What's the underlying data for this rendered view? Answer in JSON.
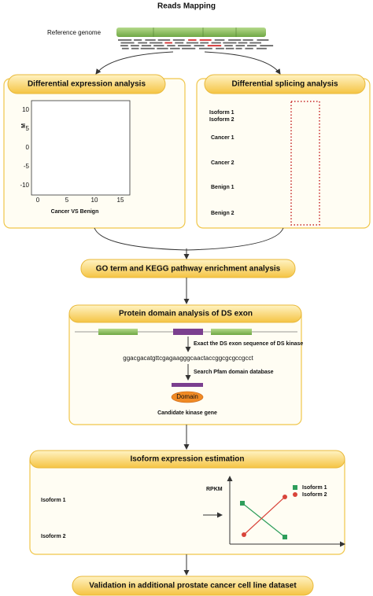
{
  "header": {
    "title": "Reads Mapping",
    "reference_label": "Reference genome"
  },
  "de_panel": {
    "title": "Differential expression analysis",
    "y_axis_label": "M",
    "y_ticks": [
      "10",
      "5",
      "0",
      "-5",
      "-10"
    ],
    "x_ticks": [
      "0",
      "5",
      "10",
      "15"
    ],
    "caption": "Cancer VS Benign"
  },
  "ds_panel": {
    "title": "Differential splicing analysis",
    "isoforms": [
      "Isoform 1",
      "Isoform 2"
    ],
    "samples": [
      "Cancer 1",
      "Cancer 2",
      "Benign 1",
      "Benign 2"
    ]
  },
  "go_step": {
    "title": "GO term and KEGG pathway enrichment analysis"
  },
  "domain_panel": {
    "title": "Protein domain analysis of DS exon",
    "step1": "Exact the DS exon sequence of DS kinase",
    "sequence": "ggacgacatgttcgagaagggcaactaccggcgcgccgcct",
    "step2": "Search Pfam domain database",
    "domain": "Domain",
    "result": "Candidate kinase gene"
  },
  "isoform_panel": {
    "title": "Isoform expression estimation",
    "isoforms": [
      "Isoform 1",
      "Isoform 2"
    ],
    "y_axis_label": "RPKM",
    "legend": [
      "Isoform 1",
      "Isoform 2"
    ]
  },
  "validation_step": {
    "title": "Validation in additional prostate cancer cell line dataset"
  }
}
